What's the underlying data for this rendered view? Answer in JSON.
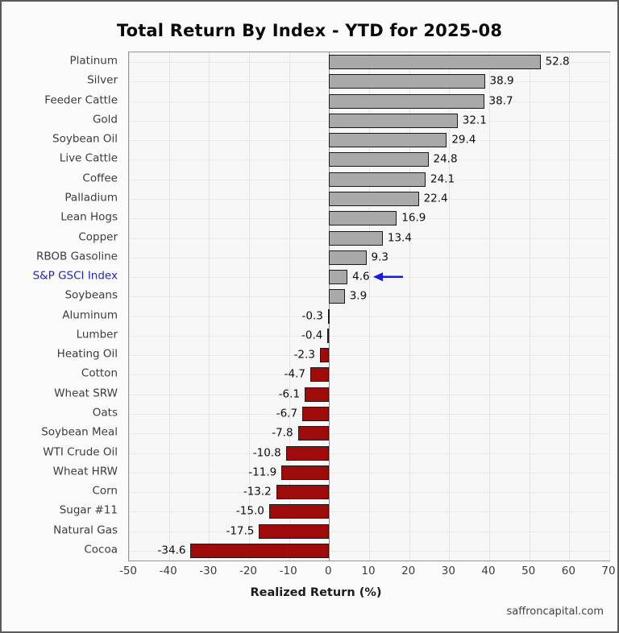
{
  "title": "Total Return By Index - YTD for 2025-08",
  "footer": "saffroncapital.com",
  "chart_data": {
    "type": "bar",
    "orientation": "horizontal",
    "title": "Total Return By Index - YTD for 2025-08",
    "xlabel": "Realized Return (%)",
    "xlim": [
      -50,
      70
    ],
    "xticks": [
      -50,
      -40,
      -30,
      -20,
      -10,
      0,
      10,
      20,
      30,
      40,
      50,
      60,
      70
    ],
    "grid": true,
    "categories": [
      "Platinum",
      "Silver",
      "Feeder Cattle",
      "Gold",
      "Soybean Oil",
      "Live Cattle",
      "Coffee",
      "Palladium",
      "Lean Hogs",
      "Copper",
      "RBOB Gasoline",
      "S&P GSCI Index",
      "Soybeans",
      "Aluminum",
      "Lumber",
      "Heating Oil",
      "Cotton",
      "Wheat SRW",
      "Oats",
      "Soybean Meal",
      "WTI Crude Oil",
      "Wheat HRW",
      "Corn",
      "Sugar #11",
      "Natural Gas",
      "Cocoa"
    ],
    "values": [
      52.8,
      38.9,
      38.7,
      32.1,
      29.4,
      24.8,
      24.1,
      22.4,
      16.9,
      13.4,
      9.3,
      4.6,
      3.9,
      -0.3,
      -0.4,
      -2.3,
      -4.7,
      -6.1,
      -6.7,
      -7.8,
      -10.8,
      -11.9,
      -13.2,
      -15.0,
      -17.5,
      -34.6
    ],
    "value_labels": [
      "52.8",
      "38.9",
      "38.7",
      "32.1",
      "29.4",
      "24.8",
      "24.1",
      "22.4",
      "16.9",
      "13.4",
      "9.3",
      "4.6",
      "3.9",
      "-0.3",
      "-0.4",
      "-2.3",
      "-4.7",
      "-6.1",
      "-6.7",
      "-7.8",
      "-10.8",
      "-11.9",
      "-13.2",
      "-15.0",
      "-17.5",
      "-34.6"
    ],
    "highlight_category": "S&P GSCI Index",
    "annotation": {
      "type": "left-arrow",
      "target": "S&P GSCI Index"
    },
    "colors": {
      "positive_bar": "#a9a9a9",
      "negative_bar": "#9f0a0a",
      "bar_edge": "#1a1a1a",
      "highlight_label": "#2222cc",
      "arrow": "#1a1ae6"
    }
  }
}
